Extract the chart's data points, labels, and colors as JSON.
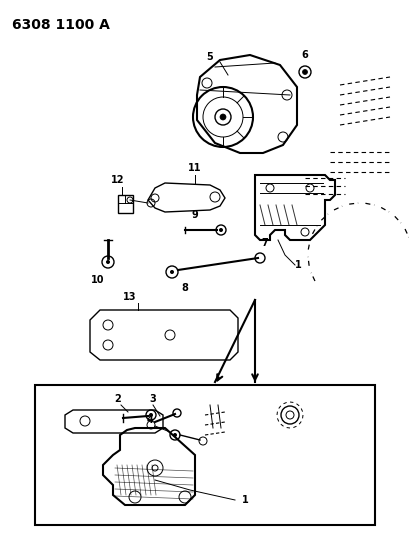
{
  "title": "6308 1100 A",
  "bg_color": "#ffffff",
  "title_fontsize": 10,
  "title_fontweight": "bold",
  "fig_width": 4.1,
  "fig_height": 5.33,
  "dpi": 100
}
